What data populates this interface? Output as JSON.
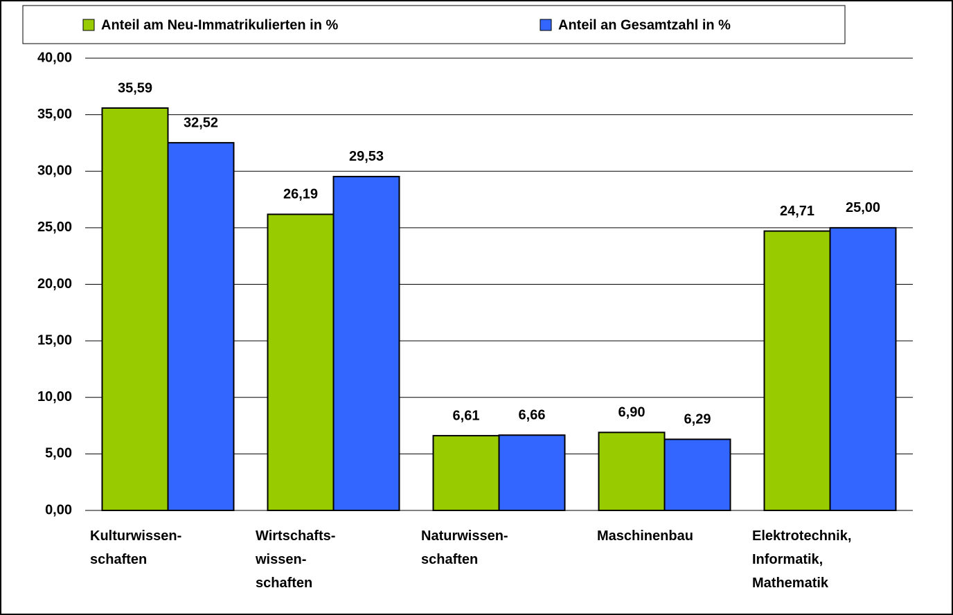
{
  "chart_data": {
    "type": "bar",
    "categories": [
      "Kulturwissen-\nschaften",
      "Wirtschafts-\nwissen-\nschaften",
      "Naturwissen-\nschaften",
      "Maschinenbau",
      "Elektrotechnik,\nInformatik,\nMathematik"
    ],
    "series": [
      {
        "name": "Anteil am Neu-Immatrikulierten in %",
        "color": "#99cc00",
        "values": [
          35.59,
          26.19,
          6.61,
          6.9,
          24.71
        ],
        "value_labels": [
          "35,59",
          "26,19",
          "6,61",
          "6,90",
          "24,71"
        ]
      },
      {
        "name": "Anteil an Gesamtzahl in %",
        "color": "#3366ff",
        "values": [
          32.52,
          29.53,
          6.66,
          6.29,
          25.0
        ],
        "value_labels": [
          "32,52",
          "29,53",
          "6,66",
          "6,29",
          "25,00"
        ]
      }
    ],
    "ylim": [
      0,
      40
    ],
    "yticks": [
      {
        "value": 0,
        "label": "0,00"
      },
      {
        "value": 5,
        "label": "5,00"
      },
      {
        "value": 10,
        "label": "10,00"
      },
      {
        "value": 15,
        "label": "15,00"
      },
      {
        "value": 20,
        "label": "20,00"
      },
      {
        "value": 25,
        "label": "25,00"
      },
      {
        "value": 30,
        "label": "30,00"
      },
      {
        "value": 35,
        "label": "35,00"
      },
      {
        "value": 40,
        "label": "40,00"
      }
    ],
    "grid": true,
    "legend": "top"
  }
}
